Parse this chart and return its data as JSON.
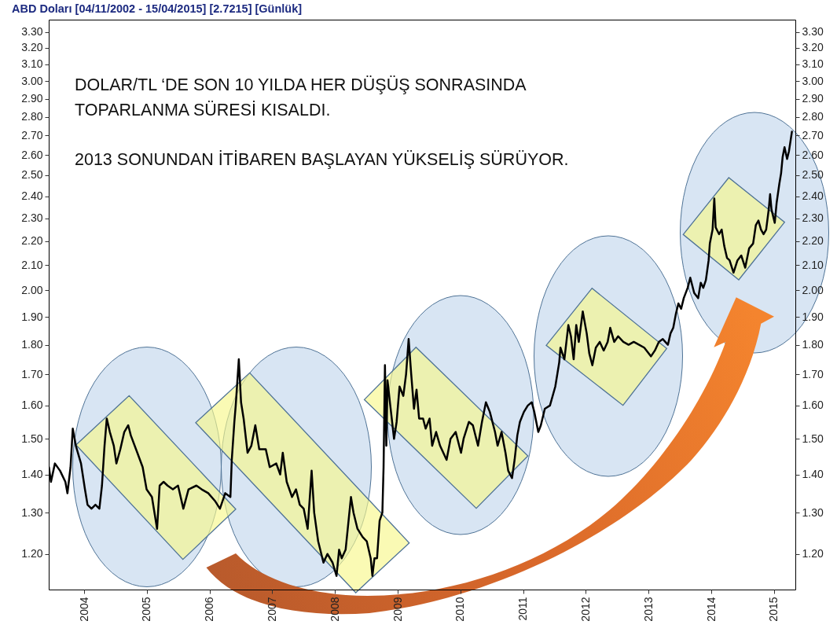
{
  "chart_data": {
    "type": "line",
    "title": "ABD Doları [04/11/2002 - 15/04/2015] [2.7215] [Günlük]",
    "annotations": [
      "DOLAR/TL ‘DE SON 10 YILDA HER DÜŞÜŞ SONRASINDA TOPARLANMA SÜRESİ KISALDI.",
      "2013 SONUNDAN İTİBAREN BAŞLAYAN YÜKSELİŞ SÜRÜYOR."
    ],
    "x": [
      "2003-06-10",
      "2003-06-22",
      "2003-07-15",
      "2003-08-14",
      "2003-09-14",
      "2003-09-26",
      "2003-10-14",
      "2003-10-27",
      "2003-11-14",
      "2003-12-14",
      "2004-01-06",
      "2004-01-21",
      "2004-02-13",
      "2004-03-07",
      "2004-03-30",
      "2004-04-14",
      "2004-04-29",
      "2004-05-12",
      "2004-05-30",
      "2004-06-22",
      "2004-07-07",
      "2004-07-30",
      "2004-08-22",
      "2004-09-14",
      "2004-09-29",
      "2004-11-06",
      "2004-12-07",
      "2004-12-30",
      "2005-01-30",
      "2005-03-01",
      "2005-03-16",
      "2005-04-08",
      "2005-05-01",
      "2005-06-01",
      "2005-07-01",
      "2005-08-01",
      "2005-08-31",
      "2005-10-16",
      "2005-11-16",
      "2005-12-24",
      "2006-02-01",
      "2006-03-02",
      "2006-04-02",
      "2006-05-02",
      "2006-05-10",
      "2006-05-25",
      "2006-06-02",
      "2006-06-20",
      "2006-07-03",
      "2006-07-18",
      "2006-08-10",
      "2006-09-01",
      "2006-09-24",
      "2006-10-17",
      "2006-11-24",
      "2006-12-17",
      "2007-01-24",
      "2007-02-16",
      "2007-03-03",
      "2007-03-26",
      "2007-04-26",
      "2007-05-19",
      "2007-06-10",
      "2007-07-03",
      "2007-07-26",
      "2007-08-18",
      "2007-09-02",
      "2007-09-25",
      "2007-10-26",
      "2007-11-18",
      "2007-12-18",
      "2008-01-10",
      "2008-01-25",
      "2008-02-09",
      "2008-03-03",
      "2008-04-03",
      "2008-04-18",
      "2008-05-11",
      "2008-06-10",
      "2008-07-04",
      "2008-07-27",
      "2008-08-06",
      "2008-08-18",
      "2008-09-02",
      "2008-09-17",
      "2008-10-03",
      "2008-10-10",
      "2008-10-18",
      "2008-10-26",
      "2008-11-02",
      "2008-11-18",
      "2008-12-10",
      "2008-12-25",
      "2009-01-11",
      "2009-02-02",
      "2009-02-18",
      "2009-03-05",
      "2009-03-20",
      "2009-04-05",
      "2009-04-20",
      "2009-05-05",
      "2009-05-28",
      "2009-06-12",
      "2009-07-05",
      "2009-07-20",
      "2009-08-12",
      "2009-09-04",
      "2009-10-12",
      "2009-11-04",
      "2009-12-04",
      "2010-01-04",
      "2010-01-19",
      "2010-02-19",
      "2010-03-14",
      "2010-04-13",
      "2010-05-06",
      "2010-05-29",
      "2010-06-21",
      "2010-07-21",
      "2010-08-05",
      "2010-08-28",
      "2010-09-20",
      "2010-10-06",
      "2010-10-28",
      "2010-11-12",
      "2010-11-28",
      "2010-12-13",
      "2011-01-05",
      "2011-01-28",
      "2011-02-20",
      "2011-03-07",
      "2011-03-30",
      "2011-04-14",
      "2011-05-07",
      "2011-06-06",
      "2011-07-07",
      "2011-07-30",
      "2011-08-06",
      "2011-08-29",
      "2011-09-21",
      "2011-10-06",
      "2011-10-22",
      "2011-11-06",
      "2011-11-21",
      "2011-12-14",
      "2012-01-06",
      "2012-01-21",
      "2012-02-08",
      "2012-02-28",
      "2012-03-22",
      "2012-04-14",
      "2012-05-07",
      "2012-05-22",
      "2012-06-14",
      "2012-07-07",
      "2012-08-06",
      "2012-09-06",
      "2012-10-06",
      "2012-11-06",
      "2012-12-06",
      "2013-01-14",
      "2013-02-06",
      "2013-03-01",
      "2013-03-24",
      "2013-04-23",
      "2013-05-08",
      "2013-05-24",
      "2013-06-08",
      "2013-06-23",
      "2013-07-09",
      "2013-07-24",
      "2013-08-16",
      "2013-08-31",
      "2013-09-23",
      "2013-10-16",
      "2013-10-31",
      "2013-11-15",
      "2013-11-30",
      "2013-12-16",
      "2013-12-23",
      "2014-01-08",
      "2014-01-18",
      "2014-01-26",
      "2014-02-15",
      "2014-03-02",
      "2014-03-17",
      "2014-04-02",
      "2014-04-17",
      "2014-05-10",
      "2014-06-02",
      "2014-06-24",
      "2014-07-17",
      "2014-08-09",
      "2014-09-01",
      "2014-09-17",
      "2014-10-02",
      "2014-10-17",
      "2014-11-01",
      "2014-11-16",
      "2014-12-01",
      "2014-12-09",
      "2014-12-17",
      "2015-01-05",
      "2015-01-16",
      "2015-02-01",
      "2015-02-11",
      "2015-02-20",
      "2015-03-03",
      "2015-03-18",
      "2015-03-29",
      "2015-04-15"
    ],
    "series": [
      {
        "color": "#000000",
        "values": [
          1.42,
          1.38,
          1.43,
          1.41,
          1.38,
          1.35,
          1.42,
          1.53,
          1.48,
          1.43,
          1.36,
          1.32,
          1.31,
          1.32,
          1.31,
          1.37,
          1.48,
          1.56,
          1.52,
          1.48,
          1.43,
          1.47,
          1.52,
          1.54,
          1.51,
          1.46,
          1.42,
          1.36,
          1.34,
          1.26,
          1.37,
          1.38,
          1.37,
          1.36,
          1.37,
          1.31,
          1.36,
          1.37,
          1.36,
          1.35,
          1.33,
          1.31,
          1.35,
          1.34,
          1.44,
          1.55,
          1.6,
          1.75,
          1.61,
          1.56,
          1.46,
          1.48,
          1.54,
          1.47,
          1.47,
          1.42,
          1.43,
          1.4,
          1.46,
          1.38,
          1.34,
          1.36,
          1.32,
          1.31,
          1.26,
          1.41,
          1.3,
          1.23,
          1.18,
          1.2,
          1.18,
          1.15,
          1.21,
          1.19,
          1.21,
          1.34,
          1.3,
          1.26,
          1.24,
          1.23,
          1.19,
          1.15,
          1.19,
          1.19,
          1.28,
          1.3,
          1.42,
          1.73,
          1.48,
          1.68,
          1.6,
          1.5,
          1.55,
          1.66,
          1.63,
          1.7,
          1.82,
          1.7,
          1.59,
          1.65,
          1.56,
          1.56,
          1.53,
          1.56,
          1.48,
          1.52,
          1.48,
          1.44,
          1.5,
          1.52,
          1.46,
          1.5,
          1.55,
          1.54,
          1.48,
          1.55,
          1.61,
          1.58,
          1.52,
          1.48,
          1.52,
          1.46,
          1.41,
          1.39,
          1.44,
          1.51,
          1.55,
          1.58,
          1.6,
          1.61,
          1.58,
          1.52,
          1.54,
          1.59,
          1.6,
          1.66,
          1.74,
          1.79,
          1.75,
          1.87,
          1.83,
          1.75,
          1.87,
          1.81,
          1.92,
          1.84,
          1.77,
          1.73,
          1.79,
          1.81,
          1.78,
          1.81,
          1.86,
          1.81,
          1.83,
          1.81,
          1.8,
          1.81,
          1.8,
          1.79,
          1.76,
          1.78,
          1.81,
          1.82,
          1.8,
          1.84,
          1.86,
          1.91,
          1.95,
          1.93,
          1.97,
          2.01,
          2.05,
          1.99,
          1.97,
          2.03,
          2.01,
          2.04,
          2.12,
          2.19,
          2.25,
          2.39,
          2.26,
          2.23,
          2.25,
          2.18,
          2.13,
          2.12,
          2.07,
          2.12,
          2.14,
          2.09,
          2.17,
          2.19,
          2.27,
          2.29,
          2.25,
          2.23,
          2.25,
          2.34,
          2.41,
          2.34,
          2.28,
          2.37,
          2.46,
          2.51,
          2.59,
          2.64,
          2.58,
          2.62,
          2.72
        ]
      }
    ],
    "xlim": [
      "2003-06-09",
      "2015-05-05"
    ],
    "xticks": [
      "2004",
      "2005",
      "2006",
      "2007",
      "2008",
      "2009",
      "2010",
      "2011",
      "2012",
      "2013",
      "2014",
      "2015"
    ],
    "ylim": [
      1.12,
      3.38
    ],
    "yticks": [
      {
        "value": 1.2,
        "label": "1.20"
      },
      {
        "value": 1.3,
        "label": "1.30"
      },
      {
        "value": 1.4,
        "label": "1.40"
      },
      {
        "value": 1.5,
        "label": "1.50"
      },
      {
        "value": 1.6,
        "label": "1.60"
      },
      {
        "value": 1.7,
        "label": "1.70"
      },
      {
        "value": 1.8,
        "label": "1.80"
      },
      {
        "value": 1.9,
        "label": "1.90"
      },
      {
        "value": 2.0,
        "label": "2.00"
      },
      {
        "value": 2.1,
        "label": "2.10"
      },
      {
        "value": 2.2,
        "label": "2.20"
      },
      {
        "value": 2.3,
        "label": "2.30"
      },
      {
        "value": 2.4,
        "label": "2.40"
      },
      {
        "value": 2.5,
        "label": "2.50"
      },
      {
        "value": 2.6,
        "label": "2.60"
      },
      {
        "value": 2.7,
        "label": "2.70"
      },
      {
        "value": 2.8,
        "label": "2.80"
      },
      {
        "value": 2.9,
        "label": "2.90"
      },
      {
        "value": 3.0,
        "label": "3.00"
      },
      {
        "value": 3.1,
        "label": "3.10"
      },
      {
        "value": 3.2,
        "label": "3.20"
      },
      {
        "value": 3.3,
        "label": "3.30"
      }
    ],
    "log": true
  }
}
